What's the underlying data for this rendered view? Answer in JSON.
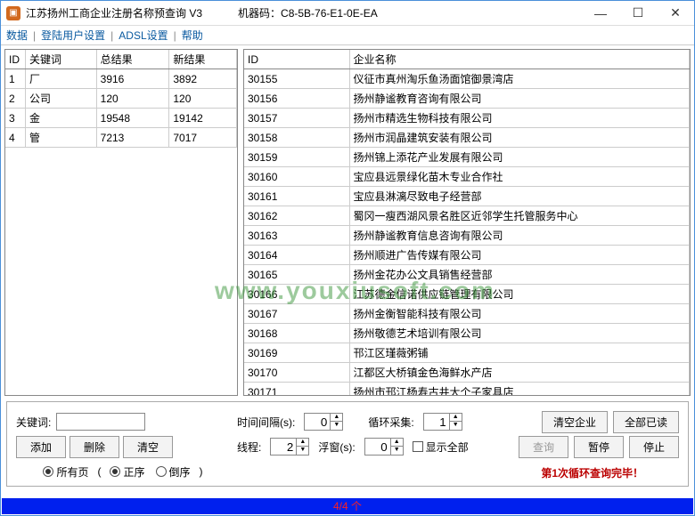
{
  "titlebar": {
    "title": "江苏扬州工商企业注册名称预查询 V3",
    "machine_code_label": "机器码：",
    "machine_code": "C8-5B-76-E1-0E-EA"
  },
  "menu": {
    "data": "数据",
    "login": "登陆用户设置",
    "adsl": "ADSL设置",
    "help": "帮助"
  },
  "left_table": {
    "headers": {
      "id": "ID",
      "keyword": "关键词",
      "total": "总结果",
      "new": "新结果"
    },
    "rows": [
      {
        "id": "1",
        "keyword": "厂",
        "total": "3916",
        "new": "3892"
      },
      {
        "id": "2",
        "keyword": "公司",
        "total": "120",
        "new": "120"
      },
      {
        "id": "3",
        "keyword": "金",
        "total": "19548",
        "new": "19142"
      },
      {
        "id": "4",
        "keyword": "管",
        "total": "7213",
        "new": "7017"
      }
    ]
  },
  "right_table": {
    "headers": {
      "id": "ID",
      "name": "企业名称"
    },
    "rows": [
      {
        "id": "30155",
        "name": "仪征市真州淘乐鱼汤面馆御景湾店"
      },
      {
        "id": "30156",
        "name": "扬州静谧教育咨询有限公司"
      },
      {
        "id": "30157",
        "name": "扬州市精选生物科技有限公司"
      },
      {
        "id": "30158",
        "name": "扬州市润晶建筑安装有限公司"
      },
      {
        "id": "30159",
        "name": "扬州锦上添花产业发展有限公司"
      },
      {
        "id": "30160",
        "name": "宝应县远景绿化苗木专业合作社"
      },
      {
        "id": "30161",
        "name": "宝应县淋漓尽致电子经营部"
      },
      {
        "id": "30162",
        "name": "蜀冈一瘦西湖风景名胜区近邻学生托管服务中心"
      },
      {
        "id": "30163",
        "name": "扬州静谧教育信息咨询有限公司"
      },
      {
        "id": "30164",
        "name": "扬州顺进广告传媒有限公司"
      },
      {
        "id": "30165",
        "name": "扬州金花办公文具销售经营部"
      },
      {
        "id": "30166",
        "name": "江苏德金信诺供应链管理有限公司"
      },
      {
        "id": "30167",
        "name": "扬州金衡智能科技有限公司"
      },
      {
        "id": "30168",
        "name": "扬州敬德艺术培训有限公司"
      },
      {
        "id": "30169",
        "name": "邗江区瑾薇粥铺"
      },
      {
        "id": "30170",
        "name": "江都区大桥镇金色海鲜水产店"
      },
      {
        "id": "30171",
        "name": "扬州市邗江杨寿古井大个子家具店"
      }
    ]
  },
  "controls": {
    "keyword_label": "关键词:",
    "interval_label": "时间间隔(s):",
    "interval_value": "0",
    "loop_label": "循环采集:",
    "loop_value": "1",
    "threads_label": "线程:",
    "threads_value": "2",
    "float_label": "浮窗(s):",
    "float_value": "0",
    "show_all_label": "显示全部",
    "all_pages_label": "所有页",
    "asc_label": "正序",
    "desc_label": "倒序",
    "buttons": {
      "add": "添加",
      "del": "删除",
      "clear": "清空",
      "clear_company": "清空企业",
      "all_read": "全部已读",
      "query": "查询",
      "pause": "暂停",
      "stop": "停止"
    },
    "status_text": "第1次循环查询完毕！"
  },
  "bottombar": {
    "text": "4/4 个"
  },
  "watermark": "www.youxiusoft.com"
}
